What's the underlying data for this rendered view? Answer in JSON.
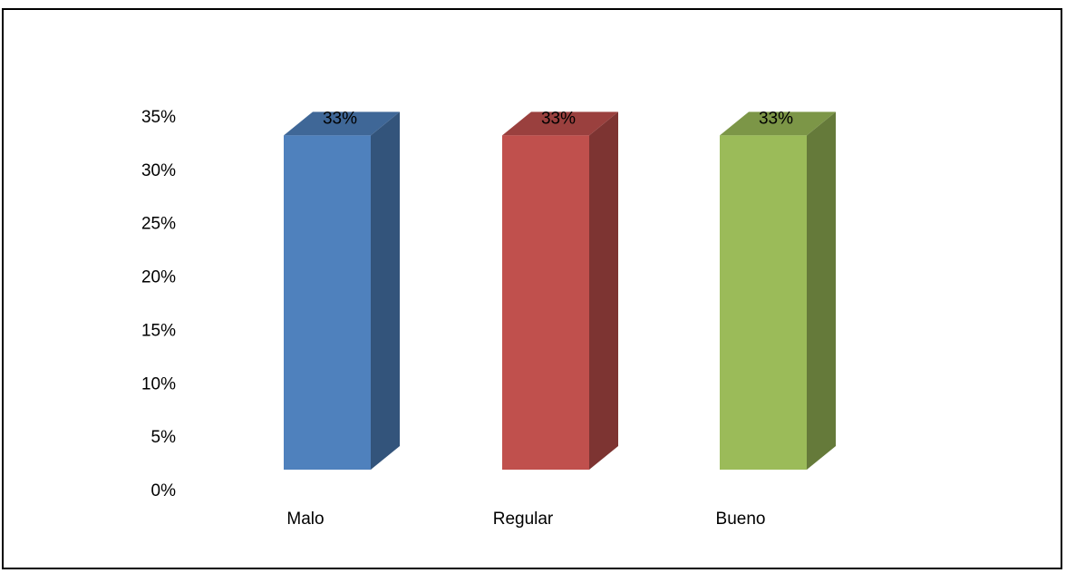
{
  "chart_data": {
    "type": "bar",
    "style": "3d-column",
    "categories": [
      "Malo",
      "Regular",
      "Bueno"
    ],
    "values": [
      0.33,
      0.33,
      0.33
    ],
    "data_labels": [
      "33%",
      "33%",
      "33%"
    ],
    "colors": [
      "#4f81bd",
      "#c0504d",
      "#9bbb59"
    ],
    "ylim": [
      0,
      0.35
    ],
    "yticks": [
      {
        "value": 0,
        "label": "0%"
      },
      {
        "value": 0.05,
        "label": "5%"
      },
      {
        "value": 0.1,
        "label": "10%"
      },
      {
        "value": 0.15,
        "label": "15%"
      },
      {
        "value": 0.2,
        "label": "20%"
      },
      {
        "value": 0.25,
        "label": "25%"
      },
      {
        "value": 0.3,
        "label": "30%"
      },
      {
        "value": 0.35,
        "label": "35%"
      }
    ],
    "grid": false,
    "legend": "none"
  }
}
